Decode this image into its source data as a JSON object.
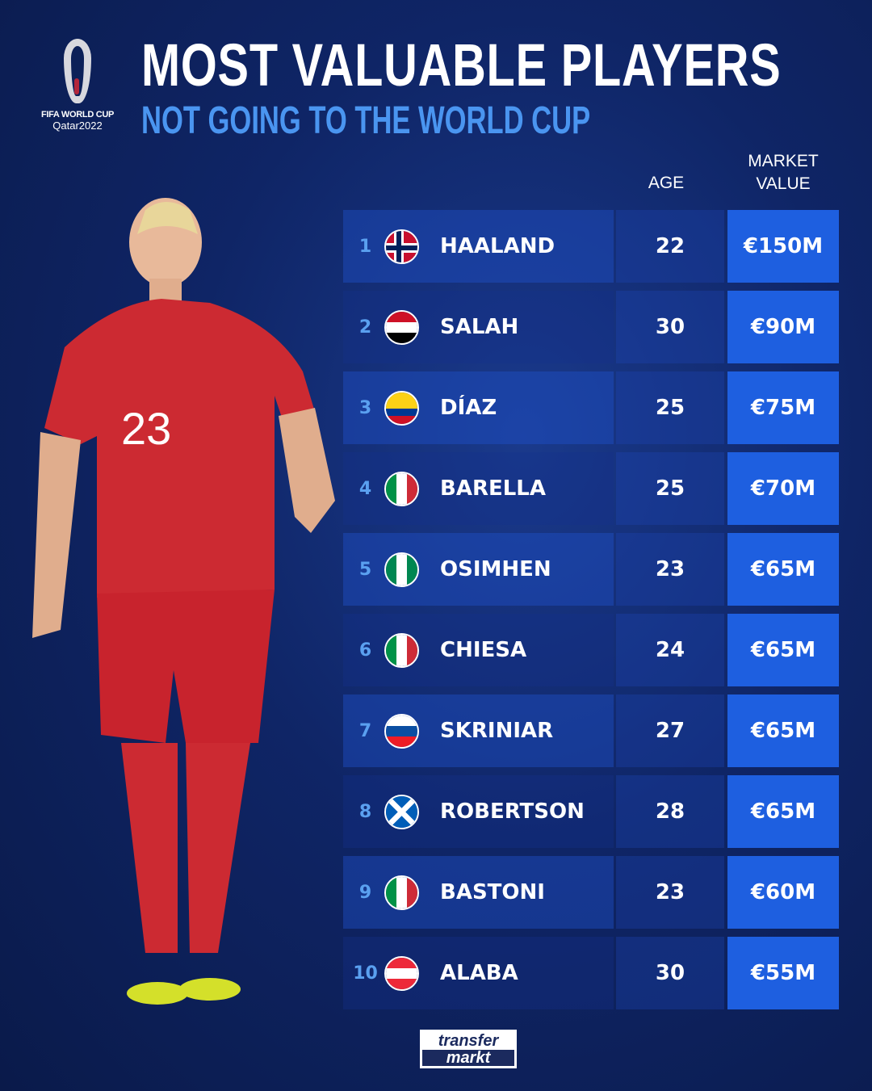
{
  "logo": {
    "line1": "FIFA WORLD CUP",
    "line2": "Qatar2022"
  },
  "header": {
    "title": "MOST VALUABLE PLAYERS",
    "subtitle": "NOT GOING TO THE WORLD CUP"
  },
  "columns": {
    "age": "AGE",
    "market_value_1": "MARKET",
    "market_value_2": "VALUE"
  },
  "rows": [
    {
      "rank": "1",
      "country": "Norway",
      "name": "HAALAND",
      "age": "22",
      "value": "€150M"
    },
    {
      "rank": "2",
      "country": "Egypt",
      "name": "SALAH",
      "age": "30",
      "value": "€90M"
    },
    {
      "rank": "3",
      "country": "Colombia",
      "name": "DÍAZ",
      "age": "25",
      "value": "€75M"
    },
    {
      "rank": "4",
      "country": "Italy",
      "name": "BARELLA",
      "age": "25",
      "value": "€70M"
    },
    {
      "rank": "5",
      "country": "Nigeria",
      "name": "OSIMHEN",
      "age": "23",
      "value": "€65M"
    },
    {
      "rank": "6",
      "country": "Italy",
      "name": "CHIESA",
      "age": "24",
      "value": "€65M"
    },
    {
      "rank": "7",
      "country": "Slovakia",
      "name": "SKRINIAR",
      "age": "27",
      "value": "€65M"
    },
    {
      "rank": "8",
      "country": "Scotland",
      "name": "ROBERTSON",
      "age": "28",
      "value": "€65M"
    },
    {
      "rank": "9",
      "country": "Italy",
      "name": "BASTONI",
      "age": "23",
      "value": "€60M"
    },
    {
      "rank": "10",
      "country": "Austria",
      "name": "ALABA",
      "age": "30",
      "value": "€55M"
    }
  ],
  "player": {
    "shirt_number": "23"
  },
  "footer": {
    "brand_line1": "transfer",
    "brand_line2": "markt"
  },
  "colors": {
    "accent": "#1e5fe0",
    "subtitle": "#4a95f0",
    "background": "#0f2566"
  }
}
